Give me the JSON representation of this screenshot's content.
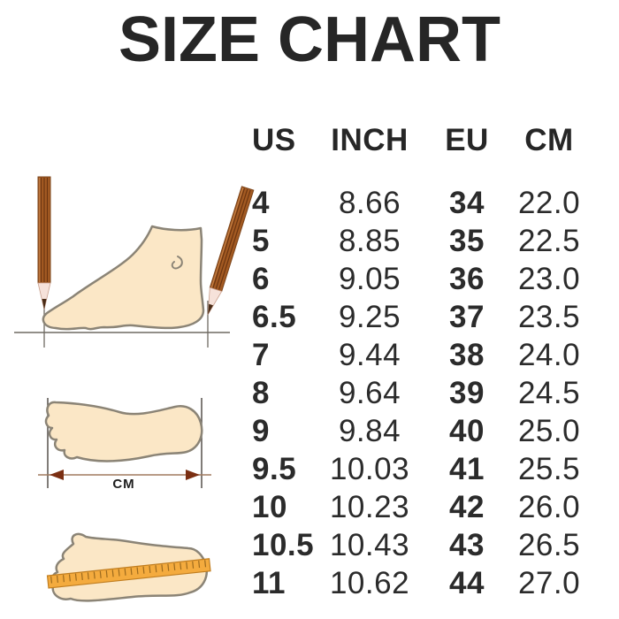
{
  "title": "SIZE CHART",
  "chart_data": {
    "type": "table",
    "title": "SIZE CHART",
    "columns": [
      "US",
      "INCH",
      "EU",
      "CM"
    ],
    "rows": [
      [
        "4",
        "8.66",
        "34",
        "22.0"
      ],
      [
        "5",
        "8.85",
        "35",
        "22.5"
      ],
      [
        "6",
        "9.05",
        "36",
        "23.0"
      ],
      [
        "6.5",
        "9.25",
        "37",
        "23.5"
      ],
      [
        "7",
        "9.44",
        "38",
        "24.0"
      ],
      [
        "8",
        "9.64",
        "39",
        "24.5"
      ],
      [
        "9",
        "9.84",
        "40",
        "25.0"
      ],
      [
        "9.5",
        "10.03",
        "41",
        "25.5"
      ],
      [
        "10",
        "10.23",
        "42",
        "26.0"
      ],
      [
        "10.5",
        "10.43",
        "43",
        "26.5"
      ],
      [
        "11",
        "10.62",
        "44",
        "27.0"
      ]
    ]
  },
  "illustrations": {
    "cm_arrow_label": "CM"
  },
  "colors": {
    "text": "#262626",
    "foot_fill": "#fbe7c6",
    "outline": "#8b8476",
    "pencil_brown": "#a35a22",
    "pencil_stripe": "#6b3511",
    "pencil_tip": "#f6e2da",
    "pencil_lead": "#4a2c16",
    "ruler_orange": "#f4ab3e",
    "ruler_edge": "#c07d1f",
    "ruler_tick": "#9c6a1e",
    "arrow_brown": "#7b2f12",
    "guide_line": "#6e6a62",
    "background": "#ffffff"
  }
}
